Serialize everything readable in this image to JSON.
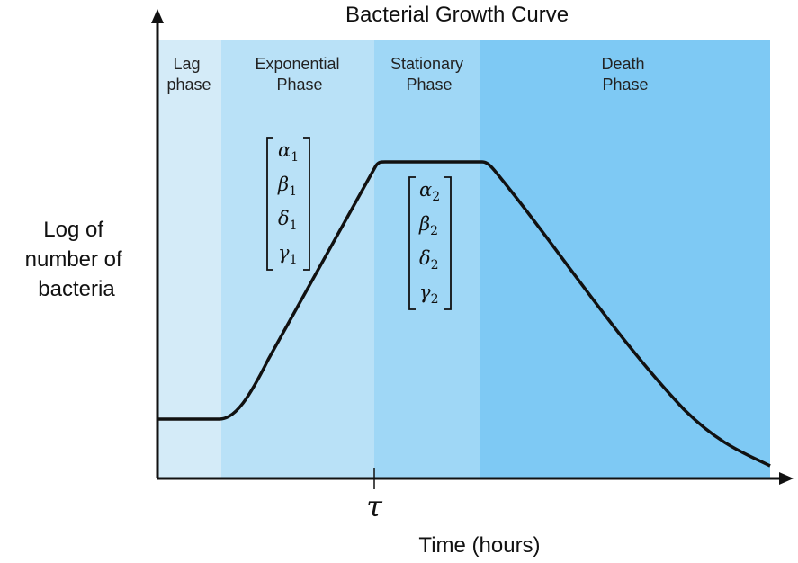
{
  "title": "Bacterial Growth Curve",
  "y_label_lines": [
    "Log of",
    "number of",
    "bacteria"
  ],
  "x_label": "Time (hours)",
  "tau_label": "τ",
  "colors": {
    "lag": "#d4ebf8",
    "exponential": "#b9e1f7",
    "stationary": "#9fd7f6",
    "death": "#7ec9f4",
    "curve": "#111111",
    "axis": "#111111"
  },
  "phases": [
    {
      "id": "lag",
      "lines": [
        "Lag",
        "phase"
      ]
    },
    {
      "id": "exponential",
      "lines": [
        "Exponential",
        "Phase"
      ]
    },
    {
      "id": "stationary",
      "lines": [
        "Stationary",
        "Phase"
      ]
    },
    {
      "id": "death",
      "lines": [
        "Death",
        "Phase"
      ]
    }
  ],
  "parameter_vectors": [
    {
      "id": "phase-1-parameters",
      "symbols": [
        {
          "sym": "α",
          "sub": "1"
        },
        {
          "sym": "β",
          "sub": "1"
        },
        {
          "sym": "δ",
          "sub": "1"
        },
        {
          "sym": "γ",
          "sub": "1"
        }
      ]
    },
    {
      "id": "phase-2-parameters",
      "symbols": [
        {
          "sym": "α",
          "sub": "2"
        },
        {
          "sym": "β",
          "sub": "2"
        },
        {
          "sym": "δ",
          "sub": "2"
        },
        {
          "sym": "γ",
          "sub": "2"
        }
      ]
    }
  ]
}
